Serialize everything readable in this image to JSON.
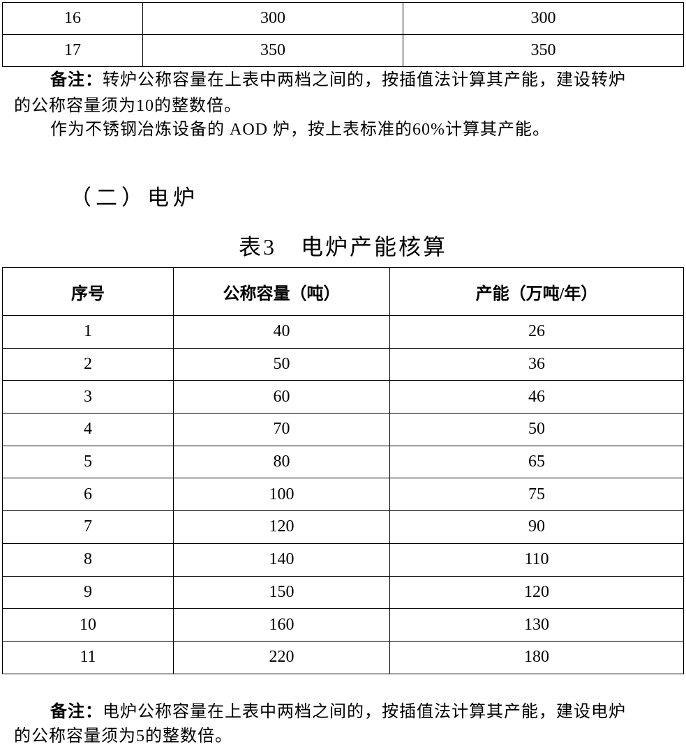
{
  "table_top": {
    "rows": [
      [
        "16",
        "300",
        "300"
      ],
      [
        "17",
        "350",
        "350"
      ]
    ]
  },
  "note1": {
    "label": "备注：",
    "line1": "转炉公称容量在上表中两档之间的，按插值法计算其产能，建设转炉",
    "line2": "的公称容量须为10的整数倍。",
    "line3": "作为不锈钢冶炼设备的 AOD 炉，按上表标准的60%计算其产能。"
  },
  "section_heading": "（二）电炉",
  "table3": {
    "caption": "表3　电炉产能核算",
    "headers": [
      "序号",
      "公称容量（吨）",
      "产能（万吨/年）"
    ],
    "rows": [
      [
        "1",
        "40",
        "26"
      ],
      [
        "2",
        "50",
        "36"
      ],
      [
        "3",
        "60",
        "46"
      ],
      [
        "4",
        "70",
        "50"
      ],
      [
        "5",
        "80",
        "65"
      ],
      [
        "6",
        "100",
        "75"
      ],
      [
        "7",
        "120",
        "90"
      ],
      [
        "8",
        "140",
        "110"
      ],
      [
        "9",
        "150",
        "120"
      ],
      [
        "10",
        "160",
        "130"
      ],
      [
        "11",
        "220",
        "180"
      ]
    ]
  },
  "note2": {
    "label": "备注：",
    "line1": "电炉公称容量在上表中两档之间的，按插值法计算其产能，建设电炉",
    "line2": "的公称容量须为5的整数倍。"
  }
}
